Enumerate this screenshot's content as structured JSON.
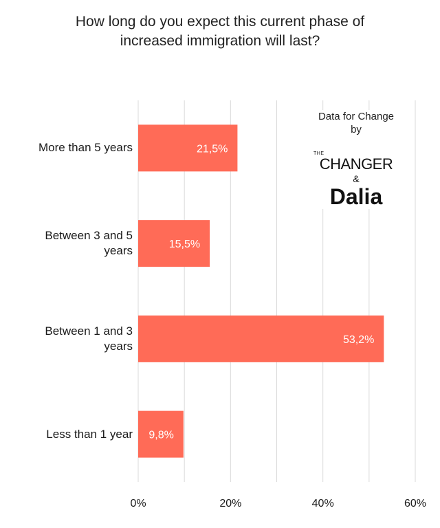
{
  "title_line1": "How long do you expect this current phase of",
  "title_line2": "increased immigration will last?",
  "branding": {
    "tagline_line1": "Data for Change",
    "tagline_line2": "by",
    "the": "THE",
    "changer": "CHANGER",
    "ampersand": "&",
    "dalia": "Dalia"
  },
  "chart_data": {
    "type": "bar",
    "orientation": "horizontal",
    "categories": [
      "More than 5 years",
      "Between 3 and 5 years",
      "Between 1 and 3 years",
      "Less than 1 year"
    ],
    "category_lines": [
      [
        "More than 5 years"
      ],
      [
        "Between 3 and 5",
        "years"
      ],
      [
        "Between 1 and 3",
        "years"
      ],
      [
        "Less than 1 year"
      ]
    ],
    "values": [
      21.5,
      15.5,
      53.2,
      9.8
    ],
    "value_labels": [
      "21,5%",
      "15,5%",
      "53,2%",
      "9,8%"
    ],
    "xlim": [
      0,
      60
    ],
    "xticks": [
      0,
      20,
      40,
      60
    ],
    "xtick_labels": [
      "0%",
      "20%",
      "40%",
      "60%"
    ],
    "grid": true,
    "bar_color": "#ff6b57",
    "label_color": "#ffffff",
    "grid_color": "#d9d9d9"
  }
}
